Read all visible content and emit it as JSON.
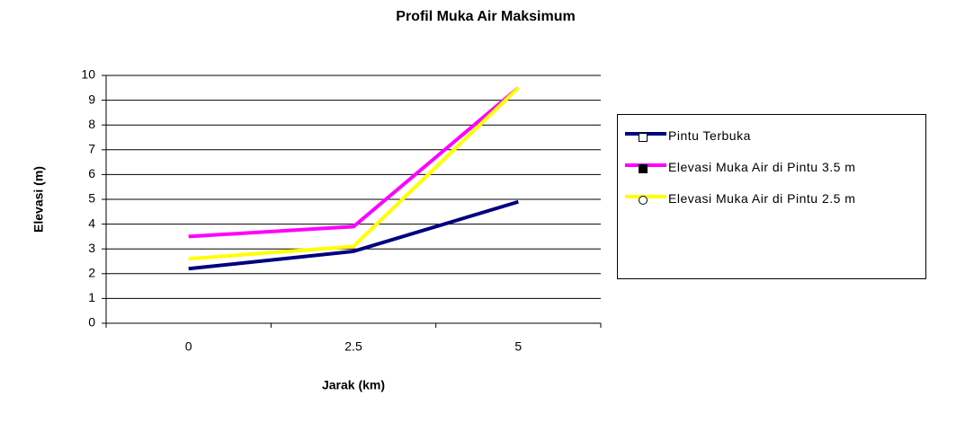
{
  "chart_data": {
    "type": "line",
    "title": "Profil Muka Air Maksimum",
    "x_label": "Jarak (km)",
    "y_label": "Elevasi (m)",
    "categories": [
      "0",
      "2.5",
      "5"
    ],
    "series": [
      {
        "name": "Pintu Terbuka",
        "color": "#000080",
        "marker": "square-open",
        "values": [
          2.2,
          2.9,
          4.9
        ]
      },
      {
        "name": "Elevasi Muka Air di Pintu 3.5 m",
        "color": "#ff00ff",
        "marker": "square",
        "values": [
          3.5,
          3.9,
          9.5
        ]
      },
      {
        "name": "Elevasi Muka Air di Pintu 2.5 m",
        "color": "#ffff00",
        "marker": "circle-open",
        "values": [
          2.6,
          3.1,
          9.5
        ]
      }
    ],
    "ylim": [
      0,
      10
    ],
    "yticks": [
      0,
      1,
      2,
      3,
      4,
      5,
      6,
      7,
      8,
      9,
      10
    ],
    "grid": true,
    "legend": "right"
  }
}
